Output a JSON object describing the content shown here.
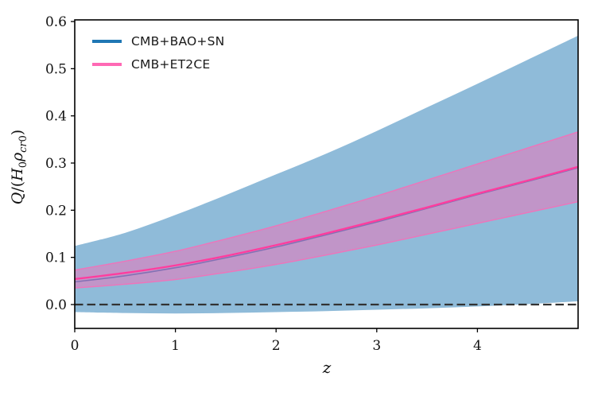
{
  "figure": {
    "background": "#ffffff"
  },
  "axes": {
    "xlabel": "z",
    "ylabel_plain": "Q/(H_0 rho_cr0)",
    "ylabel_parts": [
      {
        "text": "Q",
        "style": "italic"
      },
      {
        "text": "/(",
        "style": "normal"
      },
      {
        "text": "H",
        "style": "italic"
      },
      {
        "text": "0",
        "style": "sub"
      },
      {
        "text": "ρ",
        "style": "italic"
      },
      {
        "text": "cr",
        "style": "sub-italic"
      },
      {
        "text": "0",
        "style": "sub"
      },
      {
        "text": ")",
        "style": "normal"
      }
    ]
  },
  "legend": {
    "position": "upper left",
    "frame": false,
    "items": [
      {
        "label": "CMB+BAO+SN",
        "color": "#1f77b4"
      },
      {
        "label": "CMB+ET2CE",
        "color": "#ff69b4"
      }
    ]
  },
  "chart_data": {
    "type": "area",
    "title": "",
    "xlabel": "z",
    "ylabel": "Q/(H_0 rho_cr0)",
    "xlim": [
      0,
      5
    ],
    "ylim": [
      -0.0506,
      0.6035
    ],
    "xticks": [
      0,
      1,
      2,
      3,
      4
    ],
    "yticks": [
      0.0,
      0.1,
      0.2,
      0.3,
      0.4,
      0.5,
      0.6
    ],
    "grid": false,
    "legend_position": "upper left",
    "x": [
      0,
      0.5,
      1,
      1.5,
      2,
      2.5,
      3,
      3.5,
      4,
      4.5,
      5
    ],
    "series": [
      {
        "name": "CMB+BAO+SN band",
        "kind": "band",
        "color": "#1f77b4",
        "fill_opacity": 0.5,
        "edge": "none",
        "lower": [
          -0.016,
          -0.018,
          -0.019,
          -0.018,
          -0.016,
          -0.014,
          -0.011,
          -0.008,
          -0.004,
          0.001,
          0.007
        ],
        "upper": [
          0.124,
          0.152,
          0.19,
          0.232,
          0.276,
          0.32,
          0.368,
          0.418,
          0.468,
          0.519,
          0.57
        ]
      },
      {
        "name": "CMB+BAO+SN best fit",
        "kind": "line",
        "color": "#1f77b4",
        "width": 1.6,
        "values": [
          0.048,
          0.061,
          0.078,
          0.099,
          0.122,
          0.148,
          0.175,
          0.204,
          0.233,
          0.261,
          0.29
        ]
      },
      {
        "name": "CMB+ET2CE band",
        "kind": "band",
        "color": "#ff69b4",
        "fill_opacity": 0.45,
        "edge": "#f56fb8",
        "edge_width": 1.4,
        "lower": [
          0.035,
          0.043,
          0.053,
          0.068,
          0.085,
          0.105,
          0.126,
          0.149,
          0.172,
          0.195,
          0.218
        ],
        "upper": [
          0.073,
          0.092,
          0.113,
          0.139,
          0.167,
          0.198,
          0.23,
          0.264,
          0.298,
          0.332,
          0.366
        ]
      },
      {
        "name": "CMB+ET2CE best fit",
        "kind": "line",
        "color": "#ff3d9e",
        "width": 2.4,
        "values": [
          0.054,
          0.067,
          0.083,
          0.103,
          0.126,
          0.151,
          0.178,
          0.206,
          0.235,
          0.263,
          0.292
        ]
      }
    ],
    "reference_line": {
      "y": 0,
      "style": "dashed",
      "color": "#333333",
      "width": 2.2,
      "dash": [
        10.5,
        5
      ]
    }
  },
  "style_colors": {
    "spine": "#000000",
    "tick": "#000000",
    "tick_label": "#111111"
  }
}
